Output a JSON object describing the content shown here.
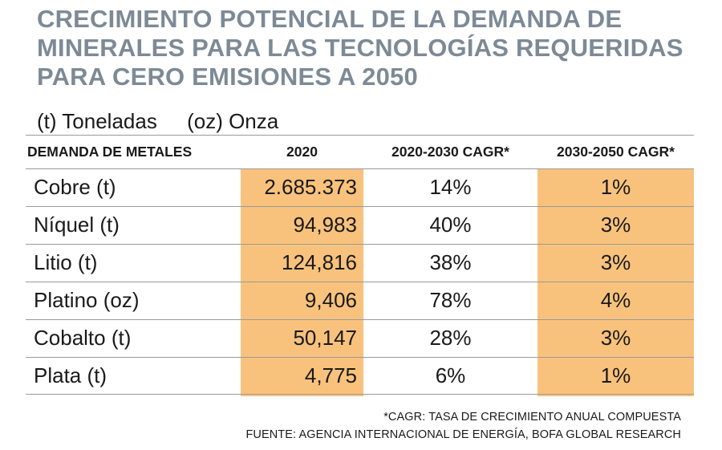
{
  "title": "CRECIMIENTO POTENCIAL DE LA DEMANDA DE MINERALES PARA LAS TECNOLOGÍAS REQUERIDAS PARA CERO EMISIONES A 2050",
  "units": {
    "tonnes": "(t) Toneladas",
    "ounces": "(oz) Onza"
  },
  "colors": {
    "title": "#7d8a96",
    "highlight": "#f8c27d",
    "rule": "#9a9a9a"
  },
  "chart_data": {
    "type": "table",
    "title": "CRECIMIENTO POTENCIAL DE LA DEMANDA DE MINERALES PARA LAS TECNOLOGÍAS REQUERIDAS PARA CERO EMISIONES A 2050",
    "columns": [
      "DEMANDA DE METALES",
      "2020",
      "2020-2030 CAGR*",
      "2030-2050 CAGR*"
    ],
    "rows": [
      [
        "Cobre (t)",
        "2.685.373",
        "14%",
        "1%"
      ],
      [
        "Níquel (t)",
        "94,983",
        "40%",
        "3%"
      ],
      [
        "Litio (t)",
        "124,816",
        "38%",
        "3%"
      ],
      [
        "Platino (oz)",
        "9,406",
        "78%",
        "4%"
      ],
      [
        "Cobalto (t)",
        "50,147",
        "28%",
        "3%"
      ],
      [
        "Plata (t)",
        "4,775",
        "6%",
        "1%"
      ]
    ]
  },
  "footnotes": {
    "cagr": "*CAGR: TASA DE CRECIMIENTO ANUAL COMPUESTA",
    "source": "FUENTE: AGENCIA INTERNACIONAL DE ENERGÍA, BOFA GLOBAL RESEARCH"
  }
}
